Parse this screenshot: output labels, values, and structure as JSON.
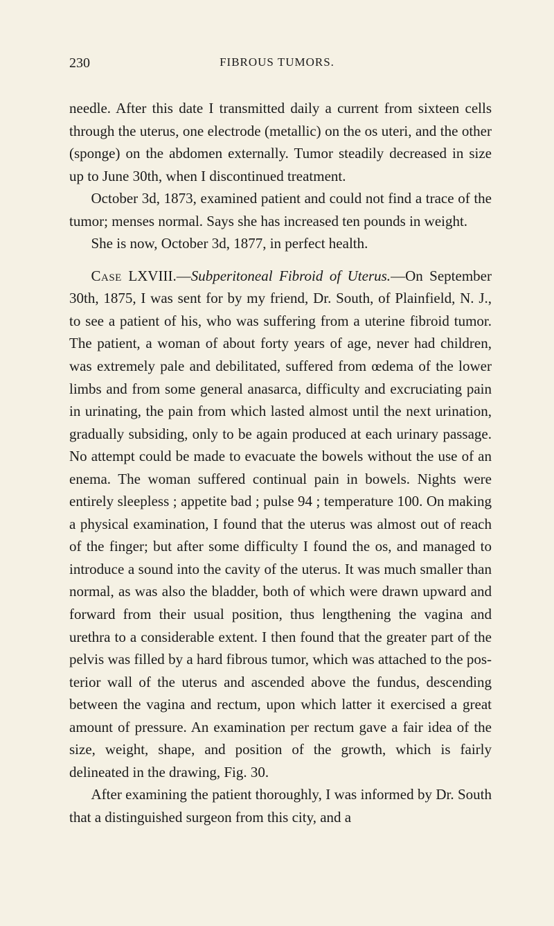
{
  "page": {
    "number": "230",
    "running_header": "FIBROUS TUMORS."
  },
  "paragraphs": {
    "p1": "needle. After this date I transmitted daily a current from six­teen cells through the uterus, one electrode (metallic) on the os uteri, and the other (sponge) on the abdomen externally. Tumor steadily decreased in size up to June 30th, when I dis­continued treatment.",
    "p2": "October 3d, 1873, examined patient and could not find a trace of the tumor; menses normal. Says she has increased ten pounds in weight.",
    "p3": "She is now, October 3d, 1877, in perfect health.",
    "case_label": "Case",
    "case_number": " LXVIII.—",
    "case_title": "Subperitoneal Fibroid of Uterus.",
    "p4_rest": "—On Sep­tember 30th, 1875, I was sent for by my friend, Dr. South, of Plainfield, N. J., to see a patient of his, who was suffering from a uterine fibroid tumor. The patient, a woman of about forty years of age, never had children, was extremely pale and debili­tated, suffered from œdema of the lower limbs and from some general anasarca, difficulty and excruciating pain in urinating, the pain from which lasted almost until the next urination, gradually subsiding, only to be again produced at each urinary passage. No attempt could be made to evacuate the bowels without the use of an enema. The woman suffered continual pain in bowels. Nights were entirely sleepless ; appetite bad ; pulse 94 ; temperature 100. On making a physical examina­tion, I found that the uterus was almost out of reach of the finger; but after some difficulty I found the os, and managed to introduce a sound into the cavity of the uterus. It was much smaller than normal, as was also the bladder, both of which were drawn upward and forward from their usual posi­tion, thus lengthening the vagina and urethra to a considerable extent. I then found that the greater part of the pelvis was filled by a hard fibrous tumor, which was attached to the pos­terior wall of the uterus and ascended above the fundus, de­scending between the vagina and rectum, upon which latter it exercised a great amount of pressure. An examination per rectum gave a fair idea of the size, weight, shape, and position of the growth, which is fairly delineated in the drawing, Fig. 30.",
    "p5": "After examining the patient thoroughly, I was informed by Dr. South that a distinguished surgeon from this city, and a"
  },
  "styling": {
    "background_color": "#f5f1e4",
    "text_color": "#1a1a1a",
    "body_fontsize": 21,
    "header_fontsize": 17,
    "pagenum_fontsize": 20,
    "line_height": 1.55,
    "font_family": "Times New Roman"
  }
}
